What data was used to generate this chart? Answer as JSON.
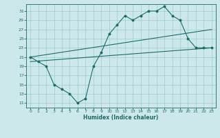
{
  "title": "",
  "xlabel": "Humidex (Indice chaleur)",
  "bg_color": "#cce8ea",
  "grid_color": "#9ecece",
  "line_color": "#1a6b6b",
  "xlim": [
    -0.5,
    23.5
  ],
  "ylim": [
    10.0,
    32.5
  ],
  "yticks": [
    11,
    13,
    15,
    17,
    19,
    21,
    23,
    25,
    27,
    29,
    31
  ],
  "xticks": [
    0,
    1,
    2,
    3,
    4,
    5,
    6,
    7,
    8,
    9,
    10,
    11,
    12,
    13,
    14,
    15,
    16,
    17,
    18,
    19,
    20,
    21,
    22,
    23
  ],
  "line_main": {
    "x": [
      0,
      1,
      2,
      3,
      4,
      5,
      6,
      7,
      8,
      9,
      10,
      11,
      12,
      13,
      14,
      15,
      16,
      17,
      18,
      19,
      20,
      21,
      22,
      23
    ],
    "y": [
      21,
      20,
      19,
      15,
      14,
      13,
      11,
      12,
      19,
      22,
      26,
      28,
      30,
      29,
      30,
      31,
      31,
      32,
      30,
      29,
      25,
      23,
      23,
      23
    ]
  },
  "line_upper": {
    "x": [
      0,
      23
    ],
    "y": [
      21,
      27
    ]
  },
  "line_lower": {
    "x": [
      0,
      23
    ],
    "y": [
      20,
      23
    ]
  }
}
